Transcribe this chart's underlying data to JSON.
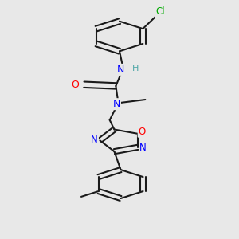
{
  "background_color": "#e8e8e8",
  "bond_color": "#1a1a1a",
  "atom_colors": {
    "N": "#0000ff",
    "O": "#ff0000",
    "Cl": "#00aa00",
    "H": "#4da6a6"
  },
  "figsize": [
    3.0,
    3.0
  ],
  "dpi": 100
}
